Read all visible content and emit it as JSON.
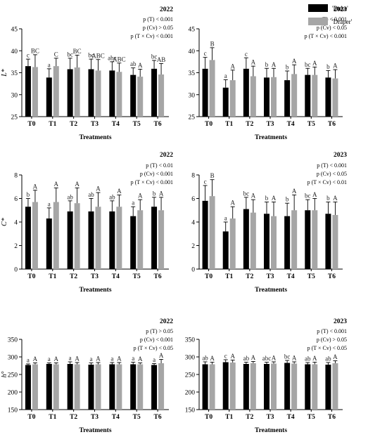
{
  "legend": [
    {
      "label": "'Duke'",
      "color": "#000000"
    },
    {
      "label": "'Draper'",
      "color": "#a6a6a6"
    }
  ],
  "chart_data": [
    {
      "type": "bar",
      "year": "2022",
      "ylabel": "L*",
      "xlabel": "Treatments",
      "categories": [
        "T0",
        "T1",
        "T2",
        "T3",
        "T4",
        "T5",
        "T6"
      ],
      "ylim": [
        25,
        45
      ],
      "yticks": [
        25,
        30,
        35,
        40,
        45
      ],
      "stats": [
        "p (T) < 0.001",
        "p (Cv) > 0.05",
        "p (T × Cv) < 0.001"
      ],
      "series": [
        {
          "name": "'Duke'",
          "values": [
            36.5,
            33.9,
            35.8,
            35.8,
            35.5,
            34.5,
            35.9
          ],
          "errors": [
            1.6,
            2.0,
            2.5,
            2.3,
            2.0,
            1.6,
            1.9
          ],
          "letters": [
            "c",
            "a",
            "bc",
            "bc",
            "abc",
            "ab",
            "bc"
          ]
        },
        {
          "name": "'Draper'",
          "values": [
            36.3,
            36.5,
            36.2,
            35.5,
            35.2,
            34.1,
            34.6
          ],
          "errors": [
            2.8,
            1.8,
            2.8,
            2.5,
            2.0,
            1.7,
            2.5
          ],
          "letters": [
            "BC",
            "C",
            "BC",
            "ABC",
            "ABC",
            "A",
            "AB"
          ]
        }
      ]
    },
    {
      "type": "bar",
      "year": "2023",
      "ylabel": "",
      "xlabel": "Treatments",
      "categories": [
        "T0",
        "T1",
        "T2",
        "T3",
        "T4",
        "T5",
        "T6"
      ],
      "ylim": [
        25,
        45
      ],
      "yticks": [
        25,
        30,
        35,
        40,
        45
      ],
      "stats": [
        "p (T) < 0.001",
        "p (Cv) < 0.05",
        "p (T × Cv) < 0.001"
      ],
      "series": [
        {
          "name": "'Duke'",
          "values": [
            35.9,
            31.6,
            35.9,
            33.9,
            33.3,
            34.5,
            33.9
          ],
          "errors": [
            2.6,
            1.8,
            2.5,
            2.1,
            2.1,
            1.5,
            1.6
          ],
          "letters": [
            "c",
            "a",
            "c",
            "b",
            "b",
            "bc",
            "b"
          ]
        },
        {
          "name": "'Draper'",
          "values": [
            37.9,
            33.3,
            34.2,
            34.0,
            34.7,
            34.5,
            33.7
          ],
          "errors": [
            2.8,
            2.3,
            2.3,
            2.0,
            2.1,
            1.8,
            2.0
          ],
          "letters": [
            "B",
            "A",
            "A",
            "A",
            "A",
            "A",
            "A"
          ]
        }
      ]
    },
    {
      "type": "bar",
      "year": "2022",
      "ylabel": "C*",
      "xlabel": "Treatments",
      "categories": [
        "T0",
        "T1",
        "T2",
        "T3",
        "T4",
        "T5",
        "T6"
      ],
      "ylim": [
        0,
        8
      ],
      "yticks": [
        0,
        2,
        4,
        6,
        8
      ],
      "stats": [
        "p (T) < 0.01",
        "p (Cv) < 0.001",
        "p (T × Cv) < 0.001"
      ],
      "series": [
        {
          "name": "'Duke'",
          "values": [
            5.3,
            4.3,
            4.9,
            4.9,
            4.9,
            4.5,
            5.3
          ],
          "errors": [
            0.7,
            0.9,
            0.9,
            1.1,
            0.9,
            0.8,
            0.8
          ],
          "letters": [
            "b",
            "a",
            "ab",
            "ab",
            "ab",
            "a",
            "b"
          ]
        },
        {
          "name": "'Draper'",
          "values": [
            5.7,
            5.7,
            5.6,
            5.3,
            5.3,
            5.0,
            5.0
          ],
          "errors": [
            1.0,
            1.2,
            1.3,
            1.2,
            1.0,
            0.9,
            1.1
          ],
          "letters": [
            "A",
            "A",
            "A",
            "A",
            "A",
            "A",
            "A"
          ]
        }
      ]
    },
    {
      "type": "bar",
      "year": "2023",
      "ylabel": "",
      "xlabel": "Treatments",
      "categories": [
        "T0",
        "T1",
        "T2",
        "T3",
        "T4",
        "T5",
        "T6"
      ],
      "ylim": [
        0,
        8
      ],
      "yticks": [
        0,
        2,
        4,
        6,
        8
      ],
      "stats": [
        "p (T) < 0.001",
        "p (Cv) < 0.05",
        "p (T × Cv) < 0.01"
      ],
      "series": [
        {
          "name": "'Duke'",
          "values": [
            5.8,
            3.2,
            5.1,
            4.7,
            4.5,
            5.0,
            4.7
          ],
          "errors": [
            1.3,
            0.8,
            1.0,
            1.0,
            1.1,
            0.9,
            1.0
          ],
          "letters": [
            "c",
            "a",
            "bc",
            "b",
            "b",
            "bc",
            "b"
          ]
        },
        {
          "name": "'Draper'",
          "values": [
            6.2,
            4.3,
            4.8,
            4.5,
            5.0,
            5.0,
            4.6
          ],
          "errors": [
            1.4,
            1.0,
            1.1,
            1.2,
            1.3,
            1.0,
            1.1
          ],
          "letters": [
            "B",
            "A",
            "A",
            "A",
            "A",
            "A",
            "A"
          ]
        }
      ]
    },
    {
      "type": "bar",
      "year": "2022",
      "ylabel": "h°",
      "xlabel": "Treatments",
      "categories": [
        "T0",
        "T1",
        "T2",
        "T3",
        "T4",
        "T5",
        "T6"
      ],
      "ylim": [
        150,
        350
      ],
      "yticks": [
        150,
        200,
        250,
        300,
        350
      ],
      "stats": [
        "p (T) > 0.05",
        "p (Cv) < 0.001",
        "p (T × Cv) < 0.05"
      ],
      "series": [
        {
          "name": "'Duke'",
          "values": [
            277,
            280,
            280,
            278,
            279,
            279,
            277
          ],
          "errors": [
            3,
            3,
            6,
            5,
            5,
            6,
            4
          ],
          "letters": [
            "a",
            "a",
            "a",
            "a",
            "a",
            "a",
            "a"
          ]
        },
        {
          "name": "'Draper'",
          "values": [
            279,
            279,
            279,
            279,
            279,
            279,
            282
          ],
          "errors": [
            4,
            4,
            5,
            5,
            5,
            4,
            11
          ],
          "letters": [
            "A",
            "A",
            "A",
            "A",
            "A",
            "A",
            "A"
          ]
        }
      ]
    },
    {
      "type": "bar",
      "year": "2023",
      "ylabel": "",
      "xlabel": "Treatments",
      "categories": [
        "T0",
        "T1",
        "T2",
        "T3",
        "T4",
        "T5",
        "T6"
      ],
      "ylim": [
        150,
        350
      ],
      "yticks": [
        150,
        200,
        250,
        300,
        350
      ],
      "stats": [
        "p (T) < 0.001",
        "p (Cv) > 0.05",
        "p (T × Cv) < 0.05"
      ],
      "series": [
        {
          "name": "'Duke'",
          "values": [
            279,
            285,
            280,
            280,
            283,
            279,
            278
          ],
          "errors": [
            7,
            7,
            5,
            5,
            7,
            5,
            6
          ],
          "letters": [
            "ab",
            "c",
            "ab",
            "abc",
            "bc",
            "ab",
            "ab"
          ]
        },
        {
          "name": "'Draper'",
          "values": [
            279,
            284,
            282,
            281,
            281,
            279,
            282
          ],
          "errors": [
            6,
            7,
            5,
            5,
            5,
            6,
            7
          ],
          "letters": [
            "A",
            "A",
            "A",
            "A",
            "A",
            "A",
            "A"
          ]
        }
      ]
    }
  ]
}
